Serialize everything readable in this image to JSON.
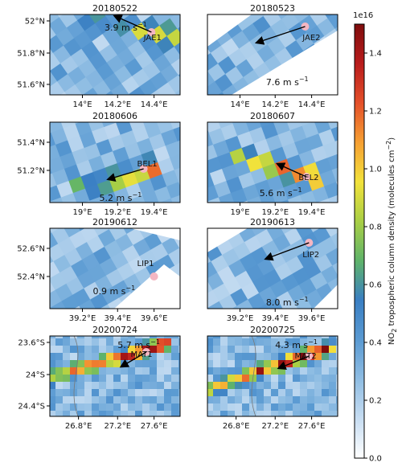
{
  "chart_data": {
    "type": "heatmap",
    "colorbar": {
      "label_main": "NO",
      "label_sub": "2",
      "label_rest": " tropospheric column density (molecules cm",
      "label_sup": "−2",
      "label_end": ")",
      "multiplier": "1e16",
      "range": [
        0.0,
        1.5
      ],
      "ticks": [
        "0.0",
        "0.2",
        "0.4",
        "0.6",
        "0.8",
        "1.0",
        "1.2",
        "1.4"
      ],
      "colormap": [
        "#ffffff",
        "#c7ddf2",
        "#8fbde3",
        "#5a9ad2",
        "#3a7fc3",
        "#5fb36a",
        "#a9cf45",
        "#f2e23b",
        "#f6a033",
        "#e4502a",
        "#b91c1c",
        "#7f0d0d"
      ]
    },
    "panels": [
      {
        "title": "20180522",
        "site": "JAE1",
        "wind": "3.9 m s",
        "wind_sup": "−1",
        "xticks": [
          "14°E",
          "14.2°E",
          "14.4°E"
        ],
        "yticks": [
          "52°N",
          "51.8°N",
          "51.6°N"
        ],
        "grid_angle": -35,
        "mask": "full",
        "plume": [
          {
            "dx": -0.45,
            "dy": -0.15
          },
          {
            "dx": 0.15,
            "dy": 0.05
          }
        ],
        "plume_level": 0.7
      },
      {
        "title": "20180523",
        "site": "JAE2",
        "wind": "7.6 m s",
        "wind_sup": "−1",
        "xticks": [
          "14°E",
          "14.2°E",
          "14.4°E"
        ],
        "yticks": [],
        "grid_angle": -35,
        "mask": "right_gap",
        "plume": [
          {
            "dx": -0.35,
            "dy": 0.1
          }
        ],
        "plume_level": 0.55
      },
      {
        "title": "20180606",
        "site": "BEL1",
        "wind": "5.2 m s",
        "wind_sup": "−1",
        "xticks": [
          "19°E",
          "19.2°E",
          "19.4°E"
        ],
        "yticks": [
          "51.4°N",
          "51.2°N"
        ],
        "grid_angle": -20,
        "mask": "full",
        "plume": [
          {
            "dx": -0.5,
            "dy": 0.25
          },
          {
            "dx": 0.05,
            "dy": 0.0
          }
        ],
        "plume_level": 1.1
      },
      {
        "title": "20180607",
        "site": "BEL2",
        "wind": "5.6 m s",
        "wind_sup": "−1",
        "xticks": [
          "19°E",
          "19.2°E",
          "19.4°E"
        ],
        "yticks": [],
        "grid_angle": -20,
        "mask": "full",
        "plume": [
          {
            "dx": -0.55,
            "dy": -0.25
          },
          {
            "dx": 0.05,
            "dy": 0.0
          }
        ],
        "plume_level": 1.2
      },
      {
        "title": "20190612",
        "site": "LIP1",
        "wind": "0.9 m s",
        "wind_sup": "−1",
        "xticks": [
          "39.2°E",
          "39.4°E",
          "39.6°E"
        ],
        "yticks": [
          "52.6°N",
          "52.4°N"
        ],
        "grid_angle": -30,
        "mask": "lower_right_gap",
        "plume": [],
        "plume_level": 0.35
      },
      {
        "title": "20190613",
        "site": "LIP2",
        "wind": "8.0 m s",
        "wind_sup": "−1",
        "xticks": [
          "39.2°E",
          "39.4°E",
          "39.6°E"
        ],
        "yticks": [],
        "grid_angle": -30,
        "mask": "diamond",
        "plume": [],
        "plume_level": 0.35
      },
      {
        "title": "20200724",
        "site": "MAT1",
        "wind": "5.7 m s",
        "wind_sup": "−1",
        "xticks": [
          "26.8°E",
          "27.2°E",
          "27.6°E"
        ],
        "yticks": [
          "23.6°S",
          "24°S",
          "24.4°S"
        ],
        "grid_angle": 0,
        "mask": "full",
        "plume": [
          {
            "dx": -0.8,
            "dy": 0.35
          },
          {
            "dx": 0.15,
            "dy": -0.1
          }
        ],
        "plume_level": 1.3
      },
      {
        "title": "20200725",
        "site": "MAT2",
        "wind": "4.3 m s",
        "wind_sup": "−1",
        "xticks": [
          "26.8°E",
          "27.2°E",
          "27.6°E"
        ],
        "yticks": [],
        "grid_angle": 0,
        "mask": "full",
        "plume": [
          {
            "dx": -0.85,
            "dy": 0.45
          },
          {
            "dx": 0.15,
            "dy": -0.1
          }
        ],
        "plume_level": 1.3
      }
    ]
  }
}
